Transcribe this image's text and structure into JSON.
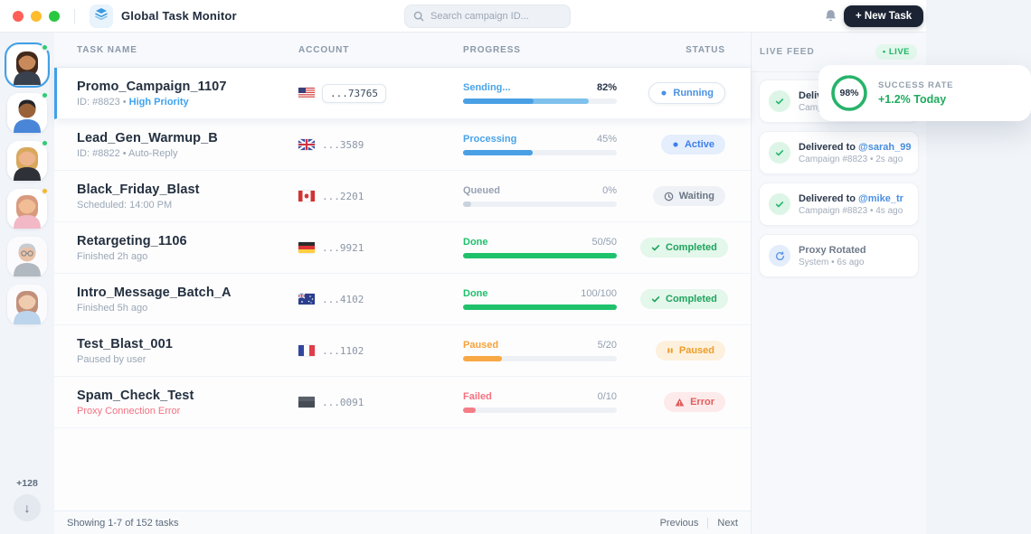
{
  "window": {
    "title": "Global Task Monitor"
  },
  "topbar": {
    "search_placeholder": "Search campaign ID...",
    "new_task_label": "+ New Task"
  },
  "colors": {
    "accent_blue": "#41a0e8",
    "green": "#1fc16b",
    "orange": "#f8a845",
    "red": "#f4717f",
    "dark_navy": "#24303f",
    "new_task_bg": "#1c2434"
  },
  "sidebar": {
    "more_count": "+128",
    "avatars": [
      {
        "label": "agent-1",
        "style": "long",
        "skin": "#c98a5b",
        "hair": "#42291c",
        "shirt": "#39404e",
        "dot": "#2ecc71",
        "selected": true
      },
      {
        "label": "agent-2",
        "style": "short",
        "skin": "#9a6238",
        "hair": "#23242a",
        "shirt": "#4a86d8",
        "dot": "#2ecc71"
      },
      {
        "label": "agent-3",
        "style": "long",
        "skin": "#eeb48c",
        "hair": "#d8a85c",
        "shirt": "#2e3138",
        "dot": "#2ecc71"
      },
      {
        "label": "agent-4",
        "style": "long",
        "skin": "#f0bd94",
        "hair": "#d89a7e",
        "shirt": "#f2b8c6",
        "dot": "#f5b731"
      },
      {
        "label": "agent-5",
        "style": "short",
        "skin": "#e6b08a",
        "hair": "#b8bdc4",
        "shirt": "#9aa1ab",
        "glasses": true,
        "faded": true
      },
      {
        "label": "agent-6",
        "style": "long",
        "skin": "#f0bd94",
        "hair": "#b06a4a",
        "shirt": "#a9c9e8",
        "faded": true
      }
    ]
  },
  "table": {
    "headers": {
      "task": "TASK NAME",
      "account": "ACCOUNT",
      "progress": "PROGRESS",
      "status": "STATUS"
    },
    "rows": [
      {
        "name": "Promo_Campaign_1107",
        "sub": "ID: #8823 • ",
        "sub_accent": "High Priority",
        "sub_style": "muted",
        "flag": "us",
        "account": "...73765",
        "account_boxed": true,
        "selected": true,
        "progress": {
          "label": "Sending...",
          "value": "82%",
          "pct": 82,
          "inner_pct": 46,
          "color": "blue",
          "value_emph": true
        },
        "status": {
          "label": "Running",
          "type": "running"
        }
      },
      {
        "name": "Lead_Gen_Warmup_B",
        "sub": "ID: #8822 • Auto-Reply",
        "sub_accent": "",
        "sub_style": "muted",
        "flag": "gb",
        "account": "...3589",
        "account_boxed": false,
        "progress": {
          "label": "Processing",
          "value": "45%",
          "pct": 45,
          "color": "blue",
          "inner_pct": 45
        },
        "status": {
          "label": "Active",
          "type": "active"
        }
      },
      {
        "name": "Black_Friday_Blast",
        "sub": "Scheduled: 14:00 PM",
        "sub_accent": "",
        "sub_style": "muted",
        "flag": "ca",
        "account": "...2201",
        "account_boxed": false,
        "progress": {
          "label": "Queued",
          "value": "0%",
          "pct": 5,
          "color": "gray"
        },
        "status": {
          "label": "Waiting",
          "type": "waiting"
        }
      },
      {
        "name": "Retargeting_1106",
        "sub": "Finished 2h ago",
        "sub_accent": "",
        "sub_style": "muted",
        "flag": "de",
        "account": "...9921",
        "account_boxed": false,
        "progress": {
          "label": "Done",
          "value": "50/50",
          "pct": 100,
          "color": "green"
        },
        "status": {
          "label": "Completed",
          "type": "completed"
        }
      },
      {
        "name": "Intro_Message_Batch_A",
        "sub": "Finished 5h ago",
        "sub_accent": "",
        "sub_style": "muted",
        "flag": "au",
        "account": "...4102",
        "account_boxed": false,
        "progress": {
          "label": "Done",
          "value": "100/100",
          "pct": 100,
          "color": "green"
        },
        "status": {
          "label": "Completed",
          "type": "completed"
        }
      },
      {
        "name": "Test_Blast_001",
        "sub": "Paused by user",
        "sub_accent": "",
        "sub_style": "muted",
        "flag": "fr",
        "account": "...1102",
        "account_boxed": false,
        "progress": {
          "label": "Paused",
          "value": "5/20",
          "pct": 25,
          "color": "orange"
        },
        "status": {
          "label": "Paused",
          "type": "paused"
        }
      },
      {
        "name": "Spam_Check_Test",
        "sub": "Proxy Connection Error",
        "sub_accent": "",
        "sub_style": "error",
        "flag": "unknown",
        "account": "...0091",
        "account_boxed": false,
        "progress": {
          "label": "Failed",
          "value": "0/10",
          "pct": 8,
          "color": "red"
        },
        "status": {
          "label": "Error",
          "type": "error"
        }
      }
    ]
  },
  "feed": {
    "title": "LIVE FEED",
    "live_badge": "• LIVE",
    "items": [
      {
        "icon": "check",
        "title_prefix": "Delivered to",
        "username": "",
        "meta": "Campaign"
      },
      {
        "icon": "check",
        "title_prefix": "Delivered to",
        "username": "@sarah_99",
        "meta": "Campaign #8823 • 2s ago"
      },
      {
        "icon": "check",
        "title_prefix": "Delivered to",
        "username": "@mike_tr",
        "meta": "Campaign #8823 • 4s ago"
      },
      {
        "icon": "refresh",
        "title_prefix": "Proxy Rotated",
        "username": "",
        "meta": "System • 6s ago",
        "muted": true
      }
    ]
  },
  "success_card": {
    "percent": "98%",
    "ring_pct": 98,
    "label": "SUCCESS RATE",
    "delta": "+1.2% Today"
  },
  "footer": {
    "showing": "Showing 1-7 of 152 tasks",
    "prev": "Previous",
    "next": "Next"
  }
}
